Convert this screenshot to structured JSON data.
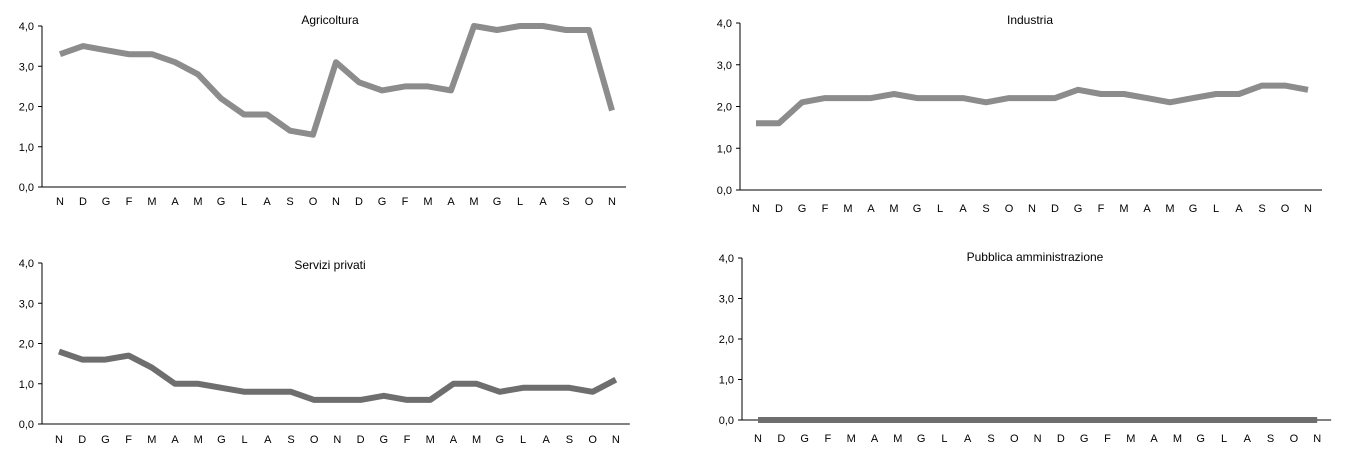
{
  "chart_data": [
    {
      "type": "line",
      "title": "Agricoltura",
      "categories": [
        "N",
        "D",
        "G",
        "F",
        "M",
        "A",
        "M",
        "G",
        "L",
        "A",
        "S",
        "O",
        "N",
        "D",
        "G",
        "F",
        "M",
        "A",
        "M",
        "G",
        "L",
        "A",
        "S",
        "O",
        "N"
      ],
      "yticks": [
        "0,0",
        "1,0",
        "2,0",
        "3,0",
        "4,0"
      ],
      "ylim": [
        0,
        4
      ],
      "values": [
        3.3,
        3.5,
        3.4,
        3.3,
        3.3,
        3.1,
        2.8,
        2.2,
        1.8,
        1.8,
        1.4,
        1.3,
        3.1,
        2.6,
        2.4,
        2.5,
        2.5,
        2.4,
        4.0,
        3.9,
        4.0,
        4.0,
        3.9,
        3.9,
        1.9
      ],
      "color": "#8c8c8c"
    },
    {
      "type": "line",
      "title": "Industria",
      "categories": [
        "N",
        "D",
        "G",
        "F",
        "M",
        "A",
        "M",
        "G",
        "L",
        "A",
        "S",
        "O",
        "N",
        "D",
        "G",
        "F",
        "M",
        "A",
        "M",
        "G",
        "L",
        "A",
        "S",
        "O",
        "N"
      ],
      "yticks": [
        "0,0",
        "1,0",
        "2,0",
        "3,0",
        "4,0"
      ],
      "ylim": [
        0,
        4
      ],
      "values": [
        1.6,
        1.6,
        2.1,
        2.2,
        2.2,
        2.2,
        2.3,
        2.2,
        2.2,
        2.2,
        2.1,
        2.2,
        2.2,
        2.2,
        2.4,
        2.3,
        2.3,
        2.2,
        2.1,
        2.2,
        2.3,
        2.3,
        2.5,
        2.5,
        2.4
      ],
      "color": "#8c8c8c"
    },
    {
      "type": "line",
      "title": "Servizi privati",
      "categories": [
        "N",
        "D",
        "G",
        "F",
        "M",
        "A",
        "M",
        "G",
        "L",
        "A",
        "S",
        "O",
        "N",
        "D",
        "G",
        "F",
        "M",
        "A",
        "M",
        "G",
        "L",
        "A",
        "S",
        "O",
        "N"
      ],
      "yticks": [
        "0,0",
        "1,0",
        "2,0",
        "3,0",
        "4,0"
      ],
      "ylim": [
        0,
        4
      ],
      "values": [
        1.8,
        1.6,
        1.6,
        1.7,
        1.4,
        1.0,
        1.0,
        0.9,
        0.8,
        0.8,
        0.8,
        0.6,
        0.6,
        0.6,
        0.7,
        0.6,
        0.6,
        1.0,
        1.0,
        0.8,
        0.9,
        0.9,
        0.9,
        0.8,
        1.1
      ],
      "color": "#6e6e6e"
    },
    {
      "type": "line",
      "title": "Pubblica amministrazione",
      "categories": [
        "N",
        "D",
        "G",
        "F",
        "M",
        "A",
        "M",
        "G",
        "L",
        "A",
        "S",
        "O",
        "N",
        "D",
        "G",
        "F",
        "M",
        "A",
        "M",
        "G",
        "L",
        "A",
        "S",
        "O",
        "N"
      ],
      "yticks": [
        "0,0",
        "1,0",
        "2,0",
        "3,0",
        "4,0"
      ],
      "ylim": [
        0,
        4
      ],
      "values": [
        0,
        0,
        0,
        0,
        0,
        0,
        0,
        0,
        0,
        0,
        0,
        0,
        0,
        0,
        0,
        0,
        0,
        0,
        0,
        0,
        0,
        0,
        0,
        0,
        0
      ],
      "color": "#6e6e6e"
    }
  ]
}
